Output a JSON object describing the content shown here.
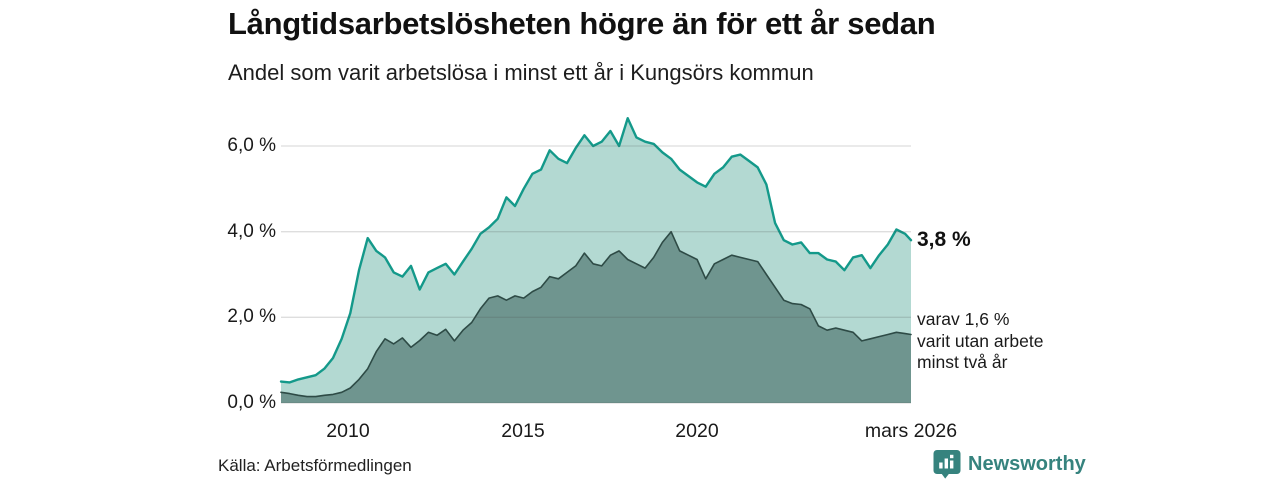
{
  "header": {
    "title": "Långtidsarbetslösheten högre än för ett år sedan",
    "subtitle": "Andel som varit arbetslösa i minst ett år i Kungsörs kommun"
  },
  "chart_data": {
    "type": "area",
    "title": "Långtidsarbetslösheten högre än för ett år sedan",
    "subtitle": "Andel som varit arbetslösa i minst ett år i Kungsörs kommun",
    "xlabel": "",
    "ylabel": "",
    "grid": true,
    "legend_position": "none",
    "xlim": [
      2008,
      2026.17
    ],
    "ylim": [
      0,
      7
    ],
    "x": [
      2008.0,
      2008.25,
      2008.5,
      2008.75,
      2009.0,
      2009.25,
      2009.5,
      2009.75,
      2010.0,
      2010.25,
      2010.5,
      2010.75,
      2011.0,
      2011.25,
      2011.5,
      2011.75,
      2012.0,
      2012.25,
      2012.5,
      2012.75,
      2013.0,
      2013.25,
      2013.5,
      2013.75,
      2014.0,
      2014.25,
      2014.5,
      2014.75,
      2015.0,
      2015.25,
      2015.5,
      2015.75,
      2016.0,
      2016.25,
      2016.5,
      2016.75,
      2017.0,
      2017.25,
      2017.5,
      2017.75,
      2018.0,
      2018.25,
      2018.5,
      2018.75,
      2019.0,
      2019.25,
      2019.5,
      2019.75,
      2020.0,
      2020.25,
      2020.5,
      2020.75,
      2021.0,
      2021.25,
      2021.5,
      2021.75,
      2022.0,
      2022.25,
      2022.5,
      2022.75,
      2023.0,
      2023.25,
      2023.5,
      2023.75,
      2024.0,
      2024.25,
      2024.5,
      2024.75,
      2025.0,
      2025.25,
      2025.5,
      2025.75,
      2026.0,
      2026.17
    ],
    "series": [
      {
        "name": "Andel som varit arbetslösa minst ett år",
        "line_color": "#14998a",
        "fill_color": "#b3d9d2",
        "line_width": 2.4,
        "values": [
          0.5,
          0.48,
          0.55,
          0.6,
          0.65,
          0.8,
          1.05,
          1.5,
          2.1,
          3.1,
          3.85,
          3.55,
          3.4,
          3.05,
          2.95,
          3.2,
          2.65,
          3.05,
          3.15,
          3.25,
          3.0,
          3.3,
          3.6,
          3.95,
          4.1,
          4.3,
          4.8,
          4.6,
          5.0,
          5.35,
          5.45,
          5.9,
          5.7,
          5.6,
          5.95,
          6.25,
          6.0,
          6.1,
          6.35,
          6.0,
          6.65,
          6.2,
          6.1,
          6.05,
          5.85,
          5.7,
          5.45,
          5.3,
          5.15,
          5.05,
          5.35,
          5.5,
          5.75,
          5.8,
          5.65,
          5.5,
          5.1,
          4.2,
          3.8,
          3.7,
          3.75,
          3.5,
          3.5,
          3.35,
          3.3,
          3.1,
          3.4,
          3.45,
          3.15,
          3.45,
          3.7,
          4.05,
          3.95,
          3.8
        ]
      },
      {
        "name": "varav arbetslösa minst två år",
        "line_color": "#2e4b46",
        "fill_color": "#6f958f",
        "line_width": 1.6,
        "values": [
          0.25,
          0.22,
          0.18,
          0.15,
          0.15,
          0.18,
          0.2,
          0.25,
          0.35,
          0.55,
          0.8,
          1.2,
          1.5,
          1.38,
          1.52,
          1.3,
          1.46,
          1.65,
          1.58,
          1.72,
          1.45,
          1.7,
          1.88,
          2.2,
          2.45,
          2.5,
          2.4,
          2.5,
          2.45,
          2.6,
          2.7,
          2.95,
          2.9,
          3.05,
          3.2,
          3.5,
          3.25,
          3.2,
          3.45,
          3.55,
          3.35,
          3.25,
          3.15,
          3.4,
          3.75,
          4.0,
          3.55,
          3.45,
          3.35,
          2.9,
          3.25,
          3.35,
          3.45,
          3.4,
          3.35,
          3.3,
          3.0,
          2.7,
          2.4,
          2.32,
          2.3,
          2.2,
          1.8,
          1.7,
          1.75,
          1.7,
          1.65,
          1.45,
          1.5,
          1.55,
          1.6,
          1.65,
          1.62,
          1.6
        ]
      }
    ],
    "yticks": [
      {
        "value": 0,
        "label": "0,0 %"
      },
      {
        "value": 2,
        "label": "2,0 %"
      },
      {
        "value": 4,
        "label": "4,0 %"
      },
      {
        "value": 6,
        "label": "6,0 %"
      }
    ],
    "xticks": [
      {
        "value": 2010,
        "label": "2010"
      },
      {
        "value": 2015,
        "label": "2015"
      },
      {
        "value": 2020,
        "label": "2020"
      },
      {
        "value": 2026.17,
        "label": "mars 2026"
      }
    ],
    "annotations": {
      "end_value_label": "3,8 %",
      "secondary_lines": [
        "varav 1,6 %",
        "varit utan arbete",
        "minst två år"
      ]
    },
    "grid_color": "#d9d9d9"
  },
  "footer": {
    "source": "Källa: Arbetsförmedlingen",
    "brand_name": "Newsworthy",
    "brand_color": "#36837e"
  }
}
